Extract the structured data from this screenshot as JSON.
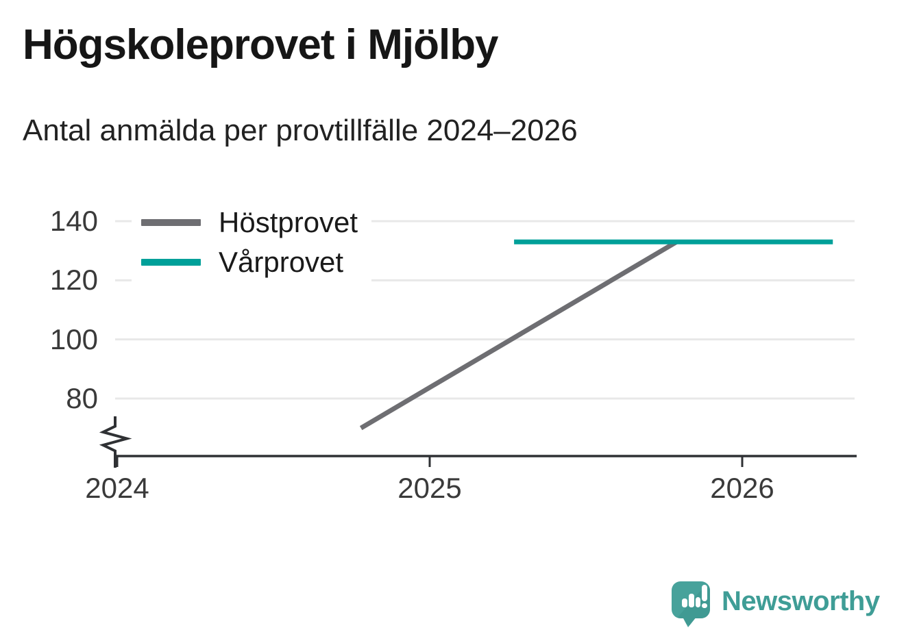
{
  "header": {
    "title": "Högskoleprovet i Mjölby",
    "subtitle": "Antal anmälda per provtillfälle 2024–2026"
  },
  "chart_data": {
    "type": "line",
    "title": "Högskoleprovet i Mjölby",
    "subtitle": "Antal anmälda per provtillfälle 2024–2026",
    "xlabel": "",
    "ylabel": "Antal anmälda",
    "x_axis": {
      "tick_values": [
        2024,
        2025,
        2026
      ],
      "tick_labels": [
        "2024",
        "2025",
        "2026"
      ],
      "range": [
        2024.0,
        2026.37
      ]
    },
    "y_axis": {
      "tick_values": [
        80,
        100,
        120,
        140
      ],
      "tick_labels": [
        "80",
        "100",
        "120",
        "140"
      ],
      "range": [
        60.5,
        145.5
      ],
      "has_axis_break": true,
      "gridlines": true
    },
    "series": [
      {
        "name": "Höstprovet",
        "color": "#6e6e72",
        "points": [
          {
            "x": 2024.78,
            "y": 70
          },
          {
            "x": 2025.79,
            "y": 133
          }
        ]
      },
      {
        "name": "Vårprovet",
        "color": "#00a099",
        "points": [
          {
            "x": 2025.27,
            "y": 133
          },
          {
            "x": 2026.29,
            "y": 133
          }
        ]
      }
    ],
    "legend_position": "top-left-inside",
    "grid": "horizontal"
  },
  "colors": {
    "axis": "#2f3134",
    "gridline": "#e8e8e8",
    "tick_text": "#3a3a3a",
    "title_text": "#161616",
    "legend_text": "#1a1a1a",
    "brand_teal": "#3f9d96",
    "bubble_teal": "#47a29b",
    "bubble_shade": "#3a938c"
  },
  "footer": {
    "brand": "Newsworthy"
  }
}
